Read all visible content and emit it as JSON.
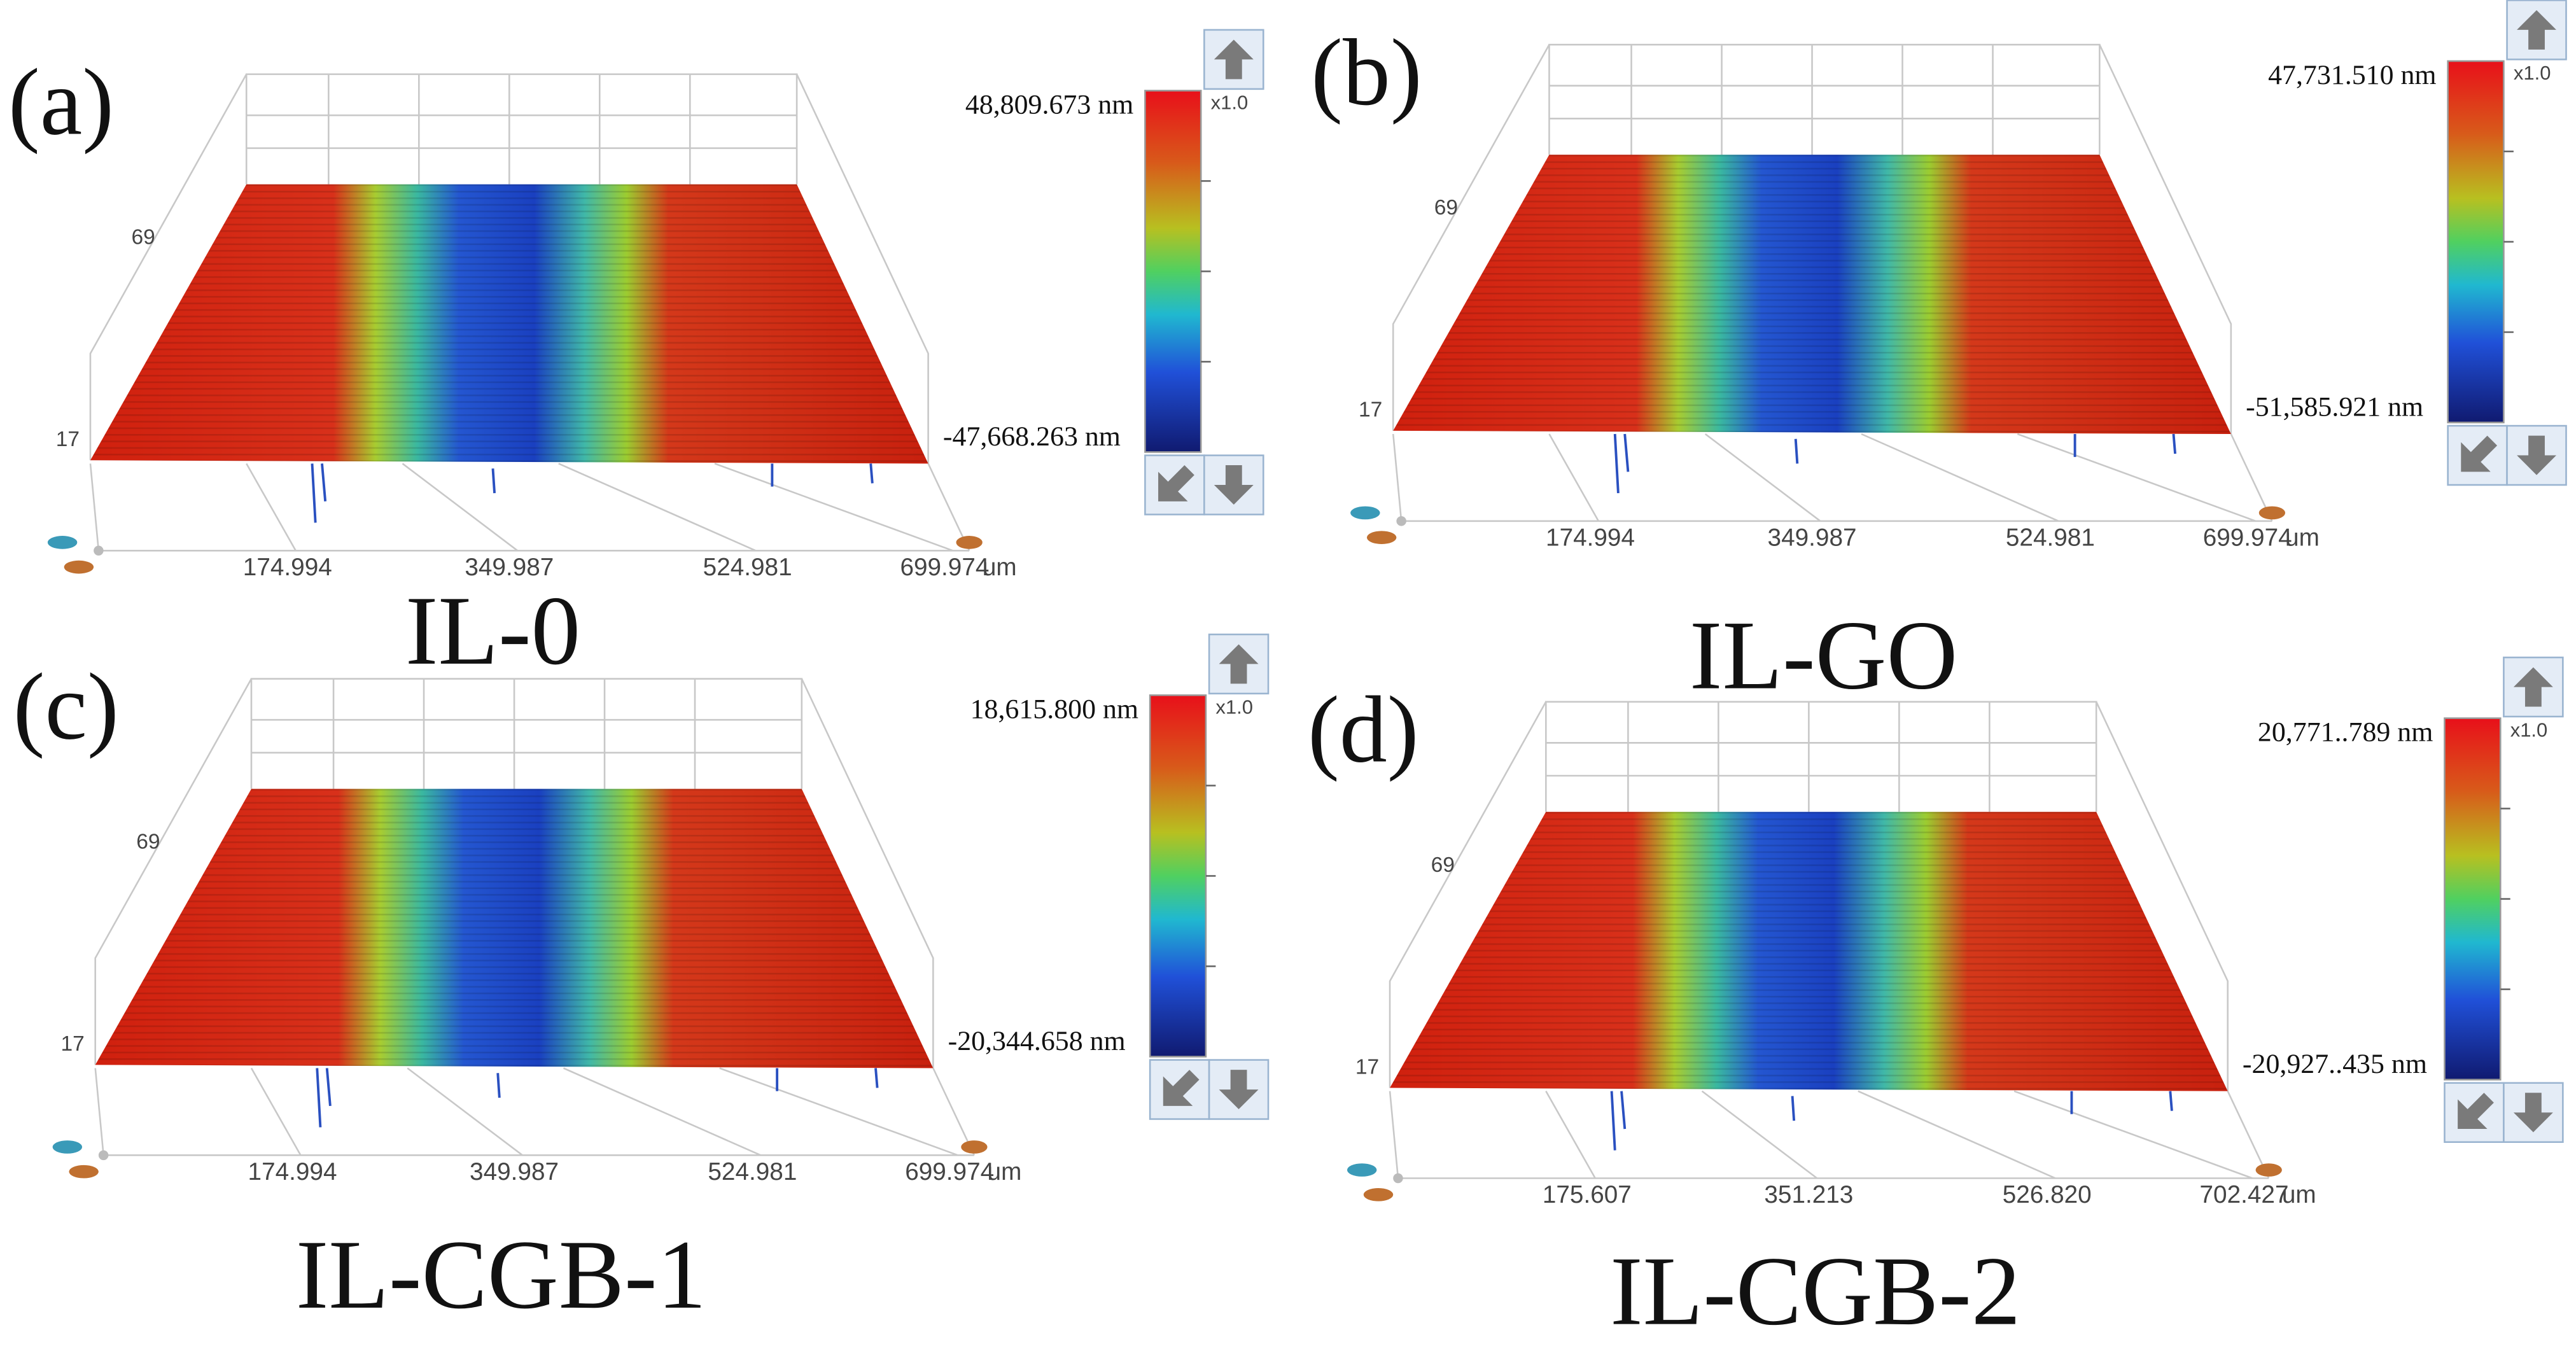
{
  "panels": [
    {
      "label": "(a)",
      "name": "IL-0",
      "max": "48,809.673 nm",
      "min": "-47,668.263 nm",
      "scale": "x1.0",
      "y_labels": [
        "69",
        "17"
      ],
      "x_ticks": [
        "174.994",
        "349.987",
        "524.981",
        "699.974"
      ],
      "unit": "um"
    },
    {
      "label": "(b)",
      "name": "IL-GO",
      "max": "47,731.510 nm",
      "min": "-51,585.921 nm",
      "scale": "x1.0",
      "y_labels": [
        "69",
        "17"
      ],
      "x_ticks": [
        "174.994",
        "349.987",
        "524.981",
        "699.974"
      ],
      "unit": "um"
    },
    {
      "label": "(c)",
      "name": "IL-CGB-1",
      "max": "18,615.800 nm",
      "min": "-20,344.658 nm",
      "scale": "x1.0",
      "y_labels": [
        "69",
        "17"
      ],
      "x_ticks": [
        "174.994",
        "349.987",
        "524.981",
        "699.974"
      ],
      "unit": "um"
    },
    {
      "label": "(d)",
      "name": "IL-CGB-2",
      "max": "20,771..789 nm",
      "min": "-20,927..435 nm",
      "scale": "x1.0",
      "y_labels": [
        "69",
        "17"
      ],
      "x_ticks": [
        "175.607",
        "351.213",
        "526.820",
        "702.427"
      ],
      "unit": "um"
    }
  ]
}
